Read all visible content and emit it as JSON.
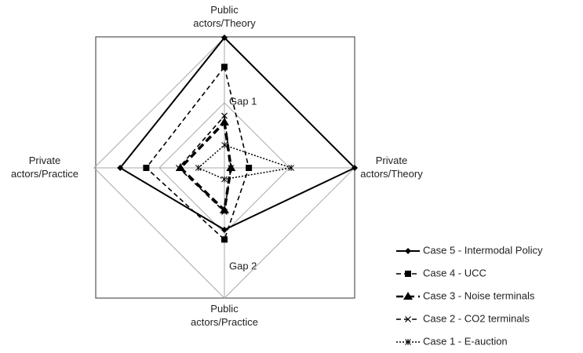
{
  "chart_data": {
    "type": "radar",
    "categories": [
      "Public actors/Theory",
      "Private actors/Theory",
      "Public actors/Practice",
      "Private actors/Practice"
    ],
    "rlim": [
      0,
      4
    ],
    "rticks": [
      0,
      2,
      4
    ],
    "grid": true,
    "annotations": [
      "Gap 1",
      "Gap 2"
    ],
    "legend": "bottom-right",
    "series": [
      {
        "name": "Case 5 - Intermodal Policy",
        "color": "#000000",
        "line_style": "solid",
        "marker": "diamond",
        "values": [
          4,
          4,
          1.9,
          3.2
        ]
      },
      {
        "name": "Case 4 - UCC",
        "color": "#000000",
        "line_style": "dashed",
        "marker": "square",
        "values": [
          3.1,
          0.75,
          2.2,
          2.4
        ]
      },
      {
        "name": "Case 3 - Noise terminals",
        "color": "#000000",
        "line_style": "thick-dashed",
        "marker": "triangle",
        "values": [
          1.4,
          0.2,
          1.3,
          1.35
        ]
      },
      {
        "name": "Case 2 - CO2 terminals",
        "color": "#000000",
        "line_style": "dashed",
        "marker": "x",
        "values": [
          1.6,
          0.2,
          1.35,
          1.4
        ]
      },
      {
        "name": "Case 1 - E-auction",
        "color": "#000000",
        "line_style": "dotted",
        "marker": "star",
        "values": [
          0.7,
          2.05,
          0.35,
          0.8
        ]
      }
    ]
  }
}
